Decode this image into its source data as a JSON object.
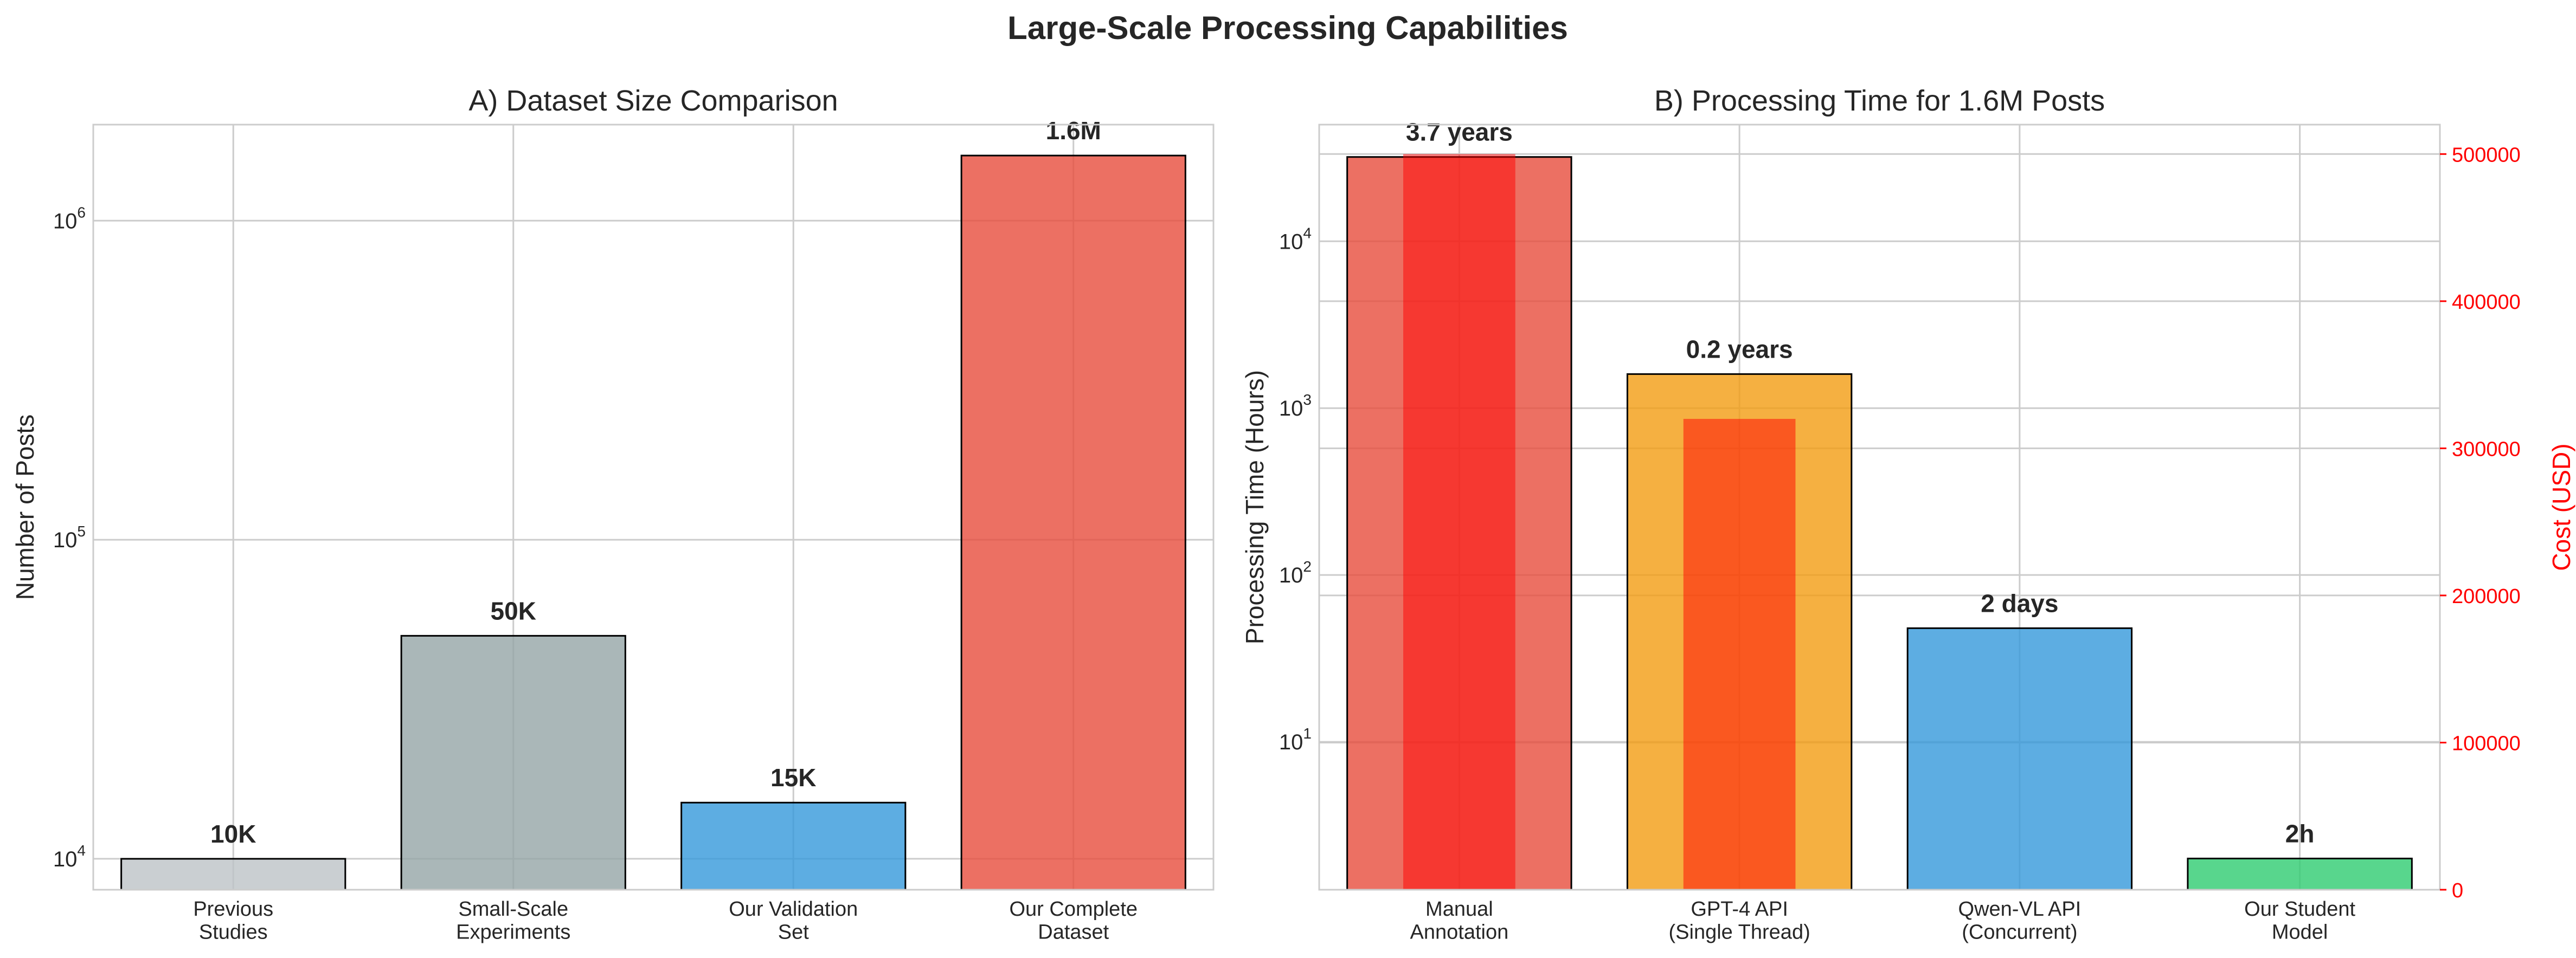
{
  "figure": {
    "title": "Large-Scale Processing Capabilities"
  },
  "chart_data": [
    {
      "type": "bar",
      "title": "A) Dataset Size Comparison",
      "xlabel": "",
      "ylabel": "Number of Posts",
      "yscale": "log",
      "ylim": [
        8000,
        2000000
      ],
      "grid": true,
      "categories": [
        "Previous\nStudies",
        "Small-Scale\nExperiments",
        "Our Validation\nSet",
        "Our Complete\nDataset"
      ],
      "values": [
        10000,
        50000,
        15000,
        1600000
      ],
      "data_labels": [
        "10K",
        "50K",
        "15K",
        "1.6M"
      ],
      "colors": [
        "#bdc3c7",
        "#95a5a6",
        "#3498db",
        "#e74c3c"
      ],
      "y_ticks": [
        {
          "value": 10000,
          "base": "10",
          "exp": "4"
        },
        {
          "value": 100000,
          "base": "10",
          "exp": "5"
        },
        {
          "value": 1000000,
          "base": "10",
          "exp": "6"
        }
      ]
    },
    {
      "type": "bar",
      "title": "B) Processing Time for 1.6M Posts",
      "xlabel": "",
      "ylabel": "Processing Time (Hours)",
      "y2label": "Cost (USD)",
      "yscale": "log",
      "ylim": [
        1.3,
        50000
      ],
      "y2lim": [
        0,
        520000
      ],
      "grid": true,
      "categories": [
        "Manual\nAnnotation",
        "GPT-4 API\n(Single Thread)",
        "Qwen-VL API\n(Concurrent)",
        "Our Student\nModel"
      ],
      "values": [
        32000,
        1600,
        48,
        2
      ],
      "data_labels": [
        "3.7 years",
        "0.2 years",
        "2 days",
        "2h"
      ],
      "colors": [
        "#e74c3c",
        "#f39c12",
        "#3498db",
        "#2ecc71"
      ],
      "cost_values": [
        500000,
        320000,
        0,
        0
      ],
      "cost_color": "#ff0000",
      "y_ticks": [
        {
          "value": 10,
          "base": "10",
          "exp": "1"
        },
        {
          "value": 100,
          "base": "10",
          "exp": "2"
        },
        {
          "value": 1000,
          "base": "10",
          "exp": "3"
        },
        {
          "value": 10000,
          "base": "10",
          "exp": "4"
        }
      ],
      "y2_ticks": [
        0,
        100000,
        200000,
        300000,
        400000,
        500000
      ]
    }
  ]
}
